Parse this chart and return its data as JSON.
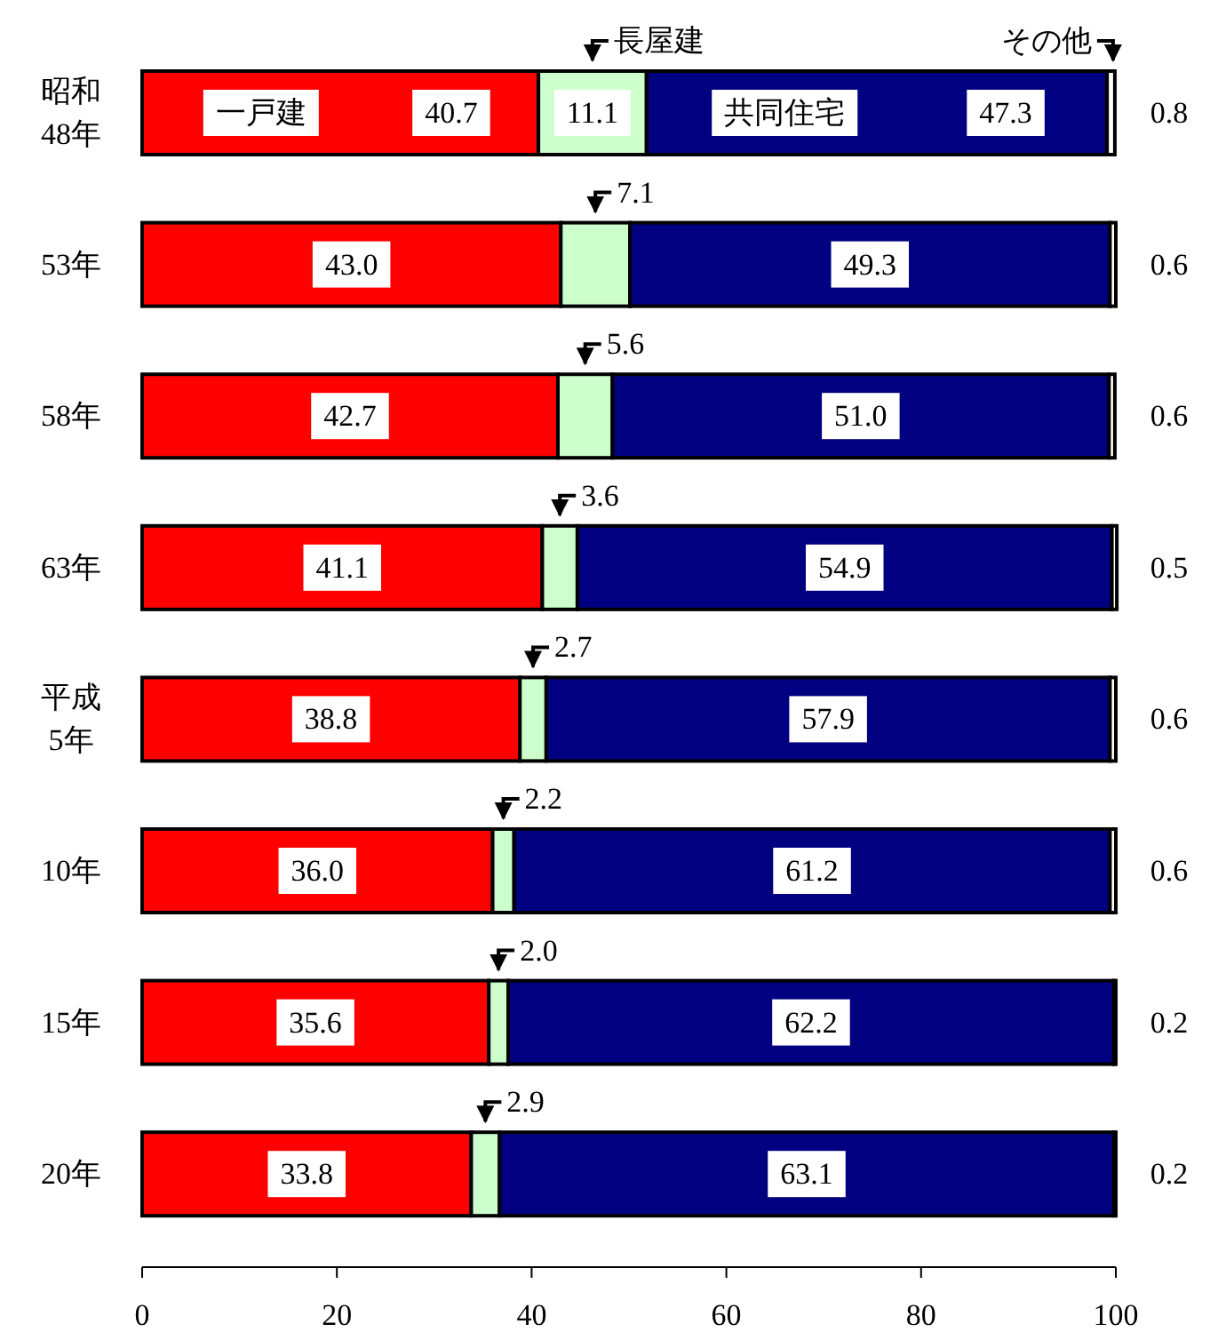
{
  "chart_data": {
    "type": "bar",
    "orientation": "horizontal",
    "stacked": true,
    "categories": [
      "昭和48年",
      "53年",
      "58年",
      "63年",
      "平成5年",
      "10年",
      "15年",
      "20年"
    ],
    "series": [
      {
        "name": "一戸建",
        "color": "#ff0000",
        "values": [
          40.7,
          43.0,
          42.7,
          41.1,
          38.8,
          36.0,
          35.6,
          33.8
        ],
        "value_labels": [
          "40.7",
          "43.0",
          "42.7",
          "41.1",
          "38.8",
          "36.0",
          "35.6",
          "33.8"
        ]
      },
      {
        "name": "長屋建",
        "color": "#ccffcc",
        "values": [
          11.1,
          7.1,
          5.6,
          3.6,
          2.7,
          2.2,
          2.0,
          2.9
        ],
        "value_labels": [
          "11.1",
          "7.1",
          "5.6",
          "3.6",
          "2.7",
          "2.2",
          "2.0",
          "2.9"
        ]
      },
      {
        "name": "共同住宅",
        "color": "#000080",
        "values": [
          47.3,
          49.3,
          51.0,
          54.9,
          57.9,
          61.2,
          62.2,
          63.1
        ],
        "value_labels": [
          "47.3",
          "49.3",
          "51.0",
          "54.9",
          "57.9",
          "61.2",
          "62.2",
          "63.1"
        ]
      },
      {
        "name": "その他",
        "color": "#ffffff",
        "values": [
          0.8,
          0.6,
          0.6,
          0.5,
          0.6,
          0.6,
          0.2,
          0.2
        ],
        "value_labels": [
          "0.8",
          "0.6",
          "0.6",
          "0.5",
          "0.6",
          "0.6",
          "0.2",
          "0.2"
        ]
      }
    ],
    "xlim": [
      0,
      100
    ],
    "xticks": [
      0,
      20,
      40,
      60,
      80,
      100
    ],
    "legend": "top",
    "grid": false
  }
}
